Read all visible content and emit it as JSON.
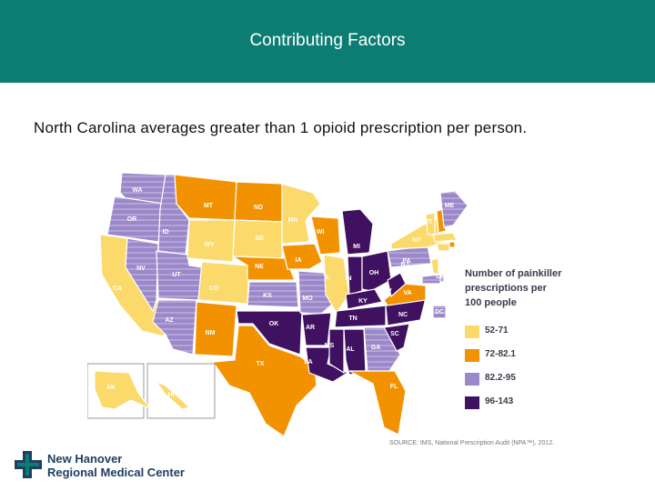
{
  "header": {
    "title": "Contributing Factors"
  },
  "subtitle": "North Carolina averages greater than 1 opioid prescription per person.",
  "map": {
    "legend": {
      "title": "Number of painkiller prescriptions per 100 people",
      "items": [
        {
          "label": "52-71",
          "color": "#fbd96a"
        },
        {
          "label": "72-82.1",
          "color": "#f39200"
        },
        {
          "label": "82.2-95",
          "color": "#9b88c9"
        },
        {
          "label": "96-143",
          "color": "#3f1160"
        }
      ]
    },
    "states": [
      {
        "abbr": "WA",
        "category": "82.2-95"
      },
      {
        "abbr": "OR",
        "category": "82.2-95"
      },
      {
        "abbr": "CA",
        "category": "52-71"
      },
      {
        "abbr": "ID",
        "category": "82.2-95"
      },
      {
        "abbr": "NV",
        "category": "82.2-95"
      },
      {
        "abbr": "UT",
        "category": "82.2-95"
      },
      {
        "abbr": "AZ",
        "category": "82.2-95"
      },
      {
        "abbr": "MT",
        "category": "72-82.1"
      },
      {
        "abbr": "WY",
        "category": "52-71"
      },
      {
        "abbr": "CO",
        "category": "52-71"
      },
      {
        "abbr": "NM",
        "category": "72-82.1"
      },
      {
        "abbr": "ND",
        "category": "72-82.1"
      },
      {
        "abbr": "SD",
        "category": "52-71"
      },
      {
        "abbr": "NE",
        "category": "72-82.1"
      },
      {
        "abbr": "KS",
        "category": "82.2-95"
      },
      {
        "abbr": "OK",
        "category": "96-143"
      },
      {
        "abbr": "TX",
        "category": "72-82.1"
      },
      {
        "abbr": "MN",
        "category": "52-71"
      },
      {
        "abbr": "IA",
        "category": "72-82.1"
      },
      {
        "abbr": "MO",
        "category": "82.2-95"
      },
      {
        "abbr": "AR",
        "category": "96-143"
      },
      {
        "abbr": "LA",
        "category": "96-143"
      },
      {
        "abbr": "WI",
        "category": "72-82.1"
      },
      {
        "abbr": "IL",
        "category": "52-71"
      },
      {
        "abbr": "MI",
        "category": "96-143"
      },
      {
        "abbr": "IN",
        "category": "96-143"
      },
      {
        "abbr": "OH",
        "category": "96-143"
      },
      {
        "abbr": "KY",
        "category": "96-143"
      },
      {
        "abbr": "TN",
        "category": "96-143"
      },
      {
        "abbr": "MS",
        "category": "96-143"
      },
      {
        "abbr": "AL",
        "category": "96-143"
      },
      {
        "abbr": "GA",
        "category": "82.2-95"
      },
      {
        "abbr": "FL",
        "category": "72-82.1"
      },
      {
        "abbr": "SC",
        "category": "96-143"
      },
      {
        "abbr": "NC",
        "category": "96-143"
      },
      {
        "abbr": "VA",
        "category": "72-82.1"
      },
      {
        "abbr": "WV",
        "category": "96-143"
      },
      {
        "abbr": "PA",
        "category": "82.2-95"
      },
      {
        "abbr": "NY",
        "category": "52-71"
      },
      {
        "abbr": "VT",
        "category": "52-71"
      },
      {
        "abbr": "NH",
        "category": "72-82.1"
      },
      {
        "abbr": "ME",
        "category": "82.2-95"
      },
      {
        "abbr": "MA",
        "category": "52-71"
      },
      {
        "abbr": "RI",
        "category": "72-82.1"
      },
      {
        "abbr": "CT",
        "category": "52-71"
      },
      {
        "abbr": "NJ",
        "category": "52-71"
      },
      {
        "abbr": "DE",
        "category": "82.2-95"
      },
      {
        "abbr": "MD",
        "category": "82.2-95"
      },
      {
        "abbr": "DC",
        "category": "82.2-95"
      },
      {
        "abbr": "AK",
        "category": "52-71"
      },
      {
        "abbr": "HI",
        "category": "52-71"
      }
    ],
    "source": "SOURCE: IMS, National Prescription Audit (NPA™), 2012."
  },
  "logo": {
    "line1": "New Hanover",
    "line2": "Regional Medical Center",
    "color": "#1f3e63",
    "accent": "#0b7d73"
  },
  "colors": {
    "header_bg": "#0b7d73"
  }
}
